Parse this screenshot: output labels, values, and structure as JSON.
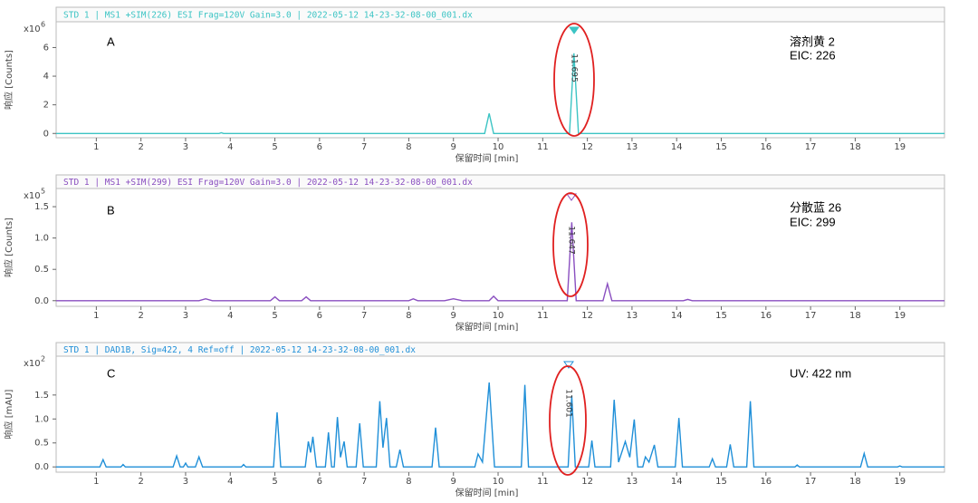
{
  "chart_data": [
    {
      "type": "line",
      "header": "STD 1 | MS1 +SIM(226) ESI Frag=120V Gain=3.0 | 2022-05-12 14-23-32-08-00_001.dx",
      "y_label": "响应 [Counts]",
      "x_label": "保留时间 [min]",
      "y_scale_label": "x10",
      "y_scale_power": "6",
      "annotations": [
        "A",
        "溶剂黄 2",
        "EIC: 226"
      ],
      "peak_label": "11.695",
      "color": "#3cc4c4",
      "xlim": [
        0.1,
        20
      ],
      "xticks": [
        1,
        2,
        3,
        4,
        5,
        6,
        7,
        8,
        9,
        10,
        11,
        12,
        13,
        14,
        15,
        16,
        17,
        18,
        19
      ],
      "ylim": [
        -0.3,
        7.8
      ],
      "yticks": [
        0,
        2,
        4,
        6
      ],
      "x": [
        0.1,
        3.75,
        3.8,
        3.85,
        9.7,
        9.8,
        9.9,
        11.6,
        11.7,
        11.8,
        20
      ],
      "values": [
        0,
        0,
        0.05,
        0,
        0,
        1.4,
        0,
        0,
        5.6,
        0,
        0
      ]
    },
    {
      "type": "line",
      "header": "STD 1 | MS1 +SIM(299) ESI Frag=120V Gain=3.0 | 2022-05-12 14-23-32-08-00_001.dx",
      "y_label": "响应 [Counts]",
      "x_label": "保留时间 [min]",
      "y_scale_label": "x10",
      "y_scale_power": "5",
      "annotations": [
        "B",
        "分散蓝 26",
        "EIC: 299"
      ],
      "peak_label": "11.647",
      "color": "#8a4fc0",
      "xlim": [
        0.1,
        20
      ],
      "xticks": [
        1,
        2,
        3,
        4,
        5,
        6,
        7,
        8,
        9,
        10,
        11,
        12,
        13,
        14,
        15,
        16,
        17,
        18,
        19
      ],
      "ylim": [
        -0.09,
        1.79
      ],
      "yticks": [
        {
          "value": 0,
          "label": "0.0"
        },
        0.5,
        {
          "value": 1,
          "label": "1.0"
        },
        1.5
      ],
      "x": [
        0.1,
        3.3,
        3.45,
        3.6,
        4.9,
        5.0,
        5.1,
        5.6,
        5.7,
        5.8,
        8.0,
        8.1,
        8.2,
        8.8,
        9.0,
        9.2,
        9.8,
        9.9,
        10.0,
        11.55,
        11.65,
        11.75,
        12.35,
        12.45,
        12.55,
        14.15,
        14.25,
        14.35,
        20
      ],
      "values": [
        0,
        0,
        0.03,
        0,
        0,
        0.06,
        0,
        0,
        0.06,
        0,
        0,
        0.03,
        0,
        0,
        0.03,
        0,
        0,
        0.07,
        0,
        0,
        1.25,
        0,
        0,
        0.27,
        0,
        0,
        0.02,
        0,
        0
      ]
    },
    {
      "type": "line",
      "header": "STD 1 | DAD1B, Sig=422, 4 Ref=off | 2022-05-12 14-23-32-08-00_001.dx",
      "y_label": "响应 [mAU]",
      "x_label": "保留时间 [min]",
      "y_scale_label": "x10",
      "y_scale_power": "2",
      "annotations": [
        "C",
        "UV: 422 nm"
      ],
      "peak_label": "11.601",
      "color": "#1f8fd8",
      "xlim": [
        0.1,
        20
      ],
      "xticks": [
        1,
        2,
        3,
        4,
        5,
        6,
        7,
        8,
        9,
        10,
        11,
        12,
        13,
        14,
        15,
        16,
        17,
        18,
        19
      ],
      "ylim": [
        -0.11,
        2.31
      ],
      "yticks": [
        {
          "value": 0,
          "label": "0.0"
        },
        0.5,
        {
          "value": 1,
          "label": "1.0"
        },
        1.5
      ],
      "x": [
        0.1,
        1.08,
        1.15,
        1.22,
        1.55,
        1.6,
        1.65,
        2.72,
        2.8,
        2.88,
        2.95,
        3.0,
        3.05,
        3.22,
        3.3,
        3.38,
        4.25,
        4.3,
        4.35,
        4.97,
        5.05,
        5.13,
        5.68,
        5.75,
        5.8,
        5.85,
        5.93,
        6.13,
        6.2,
        6.27,
        6.33,
        6.4,
        6.47,
        6.55,
        6.62,
        6.82,
        6.9,
        6.98,
        7.27,
        7.35,
        7.42,
        7.5,
        7.58,
        7.72,
        7.8,
        7.88,
        8.52,
        8.6,
        8.68,
        9.48,
        9.55,
        9.65,
        9.8,
        9.92,
        10.52,
        10.6,
        10.68,
        11.57,
        11.65,
        11.73,
        12.03,
        12.1,
        12.17,
        12.52,
        12.6,
        12.7,
        12.85,
        12.95,
        13.05,
        13.13,
        13.24,
        13.3,
        13.38,
        13.5,
        13.58,
        13.97,
        14.05,
        14.13,
        14.73,
        14.8,
        14.87,
        15.12,
        15.2,
        15.28,
        15.57,
        15.65,
        15.73,
        16.65,
        16.7,
        16.75,
        18.12,
        18.2,
        18.28,
        18.95,
        19.0,
        19.05,
        20
      ],
      "values": [
        0,
        0,
        0.15,
        0,
        0,
        0.05,
        0,
        0,
        0.23,
        0,
        0,
        0.08,
        0,
        0,
        0.21,
        0,
        0,
        0.05,
        0,
        0,
        1.14,
        0,
        0,
        0.53,
        0.3,
        0.63,
        0,
        0,
        0.72,
        0,
        0,
        1.04,
        0.2,
        0.53,
        0,
        0,
        0.91,
        0,
        0,
        1.37,
        0.4,
        1.02,
        0,
        0,
        0.36,
        0,
        0,
        0.82,
        0,
        0,
        0.27,
        0.1,
        1.76,
        0,
        0,
        1.71,
        0,
        0,
        1.48,
        0,
        0,
        0.55,
        0,
        0,
        1.4,
        0.1,
        0.53,
        0.2,
        0.99,
        0,
        0,
        0.21,
        0.1,
        0.46,
        0,
        0,
        1.02,
        0,
        0,
        0.17,
        0,
        0,
        0.47,
        0,
        0,
        1.37,
        0,
        0,
        0.04,
        0,
        0,
        0.28,
        0,
        0,
        0.02,
        0,
        0
      ]
    }
  ]
}
